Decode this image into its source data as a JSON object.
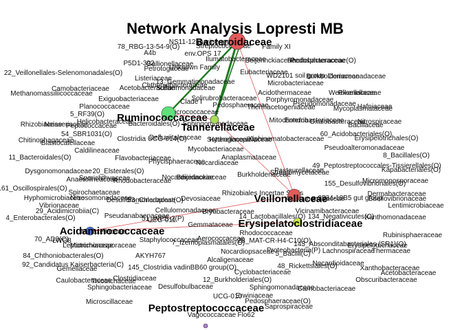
{
  "title": "Network Analysis Lopresti MB",
  "colors": {
    "bacteroidaceae": "#e35a5a",
    "ruminococcaceae": "#5fe07a",
    "tannerellaceae": "#a8dc5a",
    "veillonellaceae": "#e35a5a",
    "erysipelatoclostridiaceae": "#c8e84a",
    "acidaminococcaceae": "#4a6fd6",
    "peptostreptococcaceae": "#b57ad6",
    "edge_green": "#1f7a1f",
    "edge_red": "#e05a5a"
  },
  "major_nodes": {
    "bacteroidaceae": "Bacteroidaceae",
    "ruminococcaceae": "Ruminococcaceae",
    "tannerellaceae": "Tannerellaceae",
    "veillonellaceae": "Veillonellaceae",
    "erysipelatoclostridiaceae": "Erysipelatoclostridiaceae",
    "acidaminococcaceae": "Acidaminococcaceae",
    "peptostreptococcaceae": "Peptostreptococcaceae"
  },
  "labels": [
    "NS11-12 marine group",
    "78_RBG-13-54-9(O)",
    "Streptococcaceae",
    "Family XI",
    "A4b",
    "env.OPS 17",
    "P5D1-392",
    "Gallionellaceae",
    "Ilumatobacteraceae",
    "Beijerinckiaceae",
    "Rhodobacteraceae",
    "Pedosphaeraceae(O)",
    "Petrotogaceae",
    "Unknown Family",
    "22_Veillonellales-Selenomonadales(O)",
    "Listeriaceae",
    "Eubacteriaceae",
    "WD2101 soil group",
    "Burkholderiaceae",
    "Comamonadaceae",
    "13_Gemmatimonadaceae",
    "Chthoniobacteraceae",
    "Microbacteriaceae",
    "Camobacteriaceae",
    "Acetobacteraceae",
    "Sulfurimonadaceae",
    "Methanomassiliicoccaceae",
    "Acidothermaceae",
    "Weeksellaceae",
    "Exiguobacteriaceae",
    "Clade I",
    "Solirubrobacteraceae",
    "Porphyromonadaceae",
    "Rikenellaceae",
    "Pseudomonadaceae",
    "Planococcaceae",
    "Pedosphaeraceae",
    "Thermacetogeniaceae",
    "Mycoplasmataceae",
    "Hafniaceae",
    "5_RF39(O)",
    "Rhizobiaceae",
    "Neisseriaceae",
    "Micrococcaceae",
    "Mitochondria",
    "Bacillaceae",
    "Enterobacteriaceae",
    "Oxalobacteraceae",
    "Nitrospiraceae",
    "Sphingomonadaceae",
    "Bacteroidales(O)",
    "Defluviitaleaceae",
    "Helicobacteraceae",
    "54_SBR1031(O)",
    "Chitinophagaceae",
    "Blastocatellaceae",
    "Peptococcaceae",
    "Clostridia UCG-014(O)",
    "Sutterellaceae",
    "Xiphinematobacteraceae",
    "60_Acidobacteriales(O)",
    "Erysipelotrichales(O)",
    "Mycobacteriaceae",
    "11_Bacteroidales(O)",
    "Caldilineaceae",
    "Flavobacteriaceae",
    "Anaplasmataceae",
    "Hydrogenophilaceae",
    "Pseudoalteromonadaceae",
    "8_Bacillales(O)",
    "Nocardiaceae",
    "Phycisphaeraceae",
    "Dysgonomonadaceae",
    "20_Elsterales(O)",
    "Rhodobacteraceae",
    "Nocardioidaceae",
    "Beijerinckiaceae",
    "Burkholderiaceae",
    "Streptomycetaceae",
    "49_Peptostreptococcales-Tissierellales(O)",
    "Sporichthyaceae",
    "Cellulomonadaceae",
    "Kapabacteriales(O)",
    "Pasteurellaceae",
    "Anaerolineaceae",
    "155_Desulfovibrionales(O)",
    "Micromonosporaceae",
    "161_Oscillospirales(O)",
    "Spirochaetaceae",
    "Rhizobiales Incertae Sedis",
    "Dermabacteraceae",
    "Hyphomicrobiaceae",
    "Nitrosomonadaceae",
    "p-2534-18B5 gut group",
    "Vibrionaceae",
    "Desulfuromonadaceae",
    "Comamonadaceae",
    "Lentimicrobiaceae",
    "29_Acidimicrobiia(C)",
    "53_Chloroplast(O)",
    "Devosiaceae",
    "Bdellovibrionaceae",
    "Pseudanabaenaceae",
    "Bryobacteraceae",
    "14_Lactobacillales(O)",
    "4_Enterobacterales(O)",
    "51_WPS-2(P)",
    "Vicinamibacteraceae",
    "134_Negativicutes(C)",
    "Xanthomonadaceae",
    "70_AD3(C)",
    "Gemmataceae",
    "Rhodococcaceae",
    "Moraxellaceae",
    "UCG-011",
    "LWQ8",
    "Staphylococcaceae",
    "Aerococcaceae",
    "7_Izemoplasmatales(O)",
    "28_MAT-CR-H4-C10(O)",
    "Rubinisphaeraceae",
    "Leptotrichiaceae",
    "Micromonosporaceae",
    "Nocardiopsaceae",
    "Proteobacteria(P)",
    "143_Absconditabacteriales (SR1)(O)",
    "Lachnospiraceae",
    "84_Chthoniobacterales(O)",
    "AKYH767",
    "Alcaligenaceae",
    "5_Bacilli(C)",
    "Erysipelotrichaceae",
    "Thermaceae",
    "92_Candidatus Kaiserbacteria(C)",
    "Gemellaceae",
    "145_Clostridia vadinBB60 group(O)",
    "48_Rickettsiales(O)",
    "Nocardioidaceae",
    "Xanthobacteraceae",
    "Caulobacteraceae",
    "Thiotrichaceae",
    "Acetobacteraceae",
    "Clostridiaceae",
    "12_Burkholderiales(O)",
    "Cyclobacteriaceae",
    "Obscuribacteraceae",
    "Desulfobulbaceae",
    "Sphingobacteriaceae",
    "Erwiniaceae",
    "UCG-010",
    "Sphingomonadaceae",
    "Carnobacteriaceae",
    "Microscillaceae",
    "Pedosphaeraceae(O)",
    "Saprospiraceae",
    "Vagococcaceae",
    "Flo62"
  ]
}
